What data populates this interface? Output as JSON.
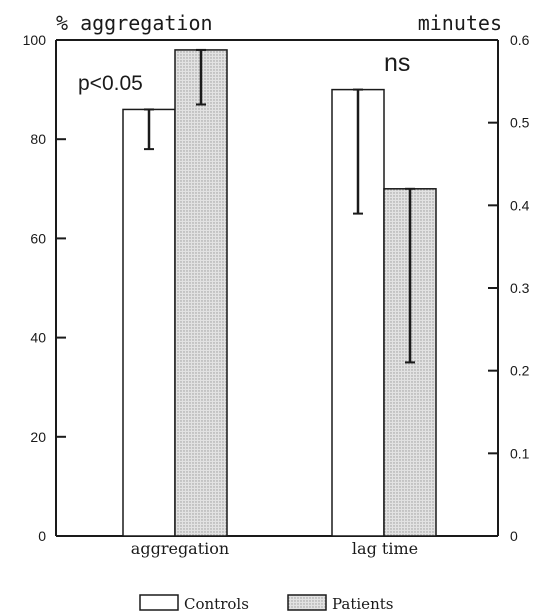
{
  "chart_data": {
    "type": "bar",
    "left_axis_label": "% aggregation",
    "right_axis_label": "minutes",
    "categories": [
      "aggregation",
      "lag time"
    ],
    "left_ylim": [
      0,
      100
    ],
    "right_ylim": [
      0,
      0.6
    ],
    "left_ticks": [
      "0",
      "20",
      "40",
      "60",
      "80",
      "100"
    ],
    "right_ticks": [
      "0",
      "0.1",
      "0.2",
      "0.3",
      "0.4",
      "0.5",
      "0.6"
    ],
    "series": [
      {
        "name": "Controls",
        "axis": [
          "left",
          "right"
        ],
        "values": [
          86,
          0.54
        ],
        "error_low": [
          78,
          0.39
        ],
        "error_high": [
          86,
          0.54
        ],
        "fill": "#ffffff"
      },
      {
        "name": "Patients",
        "axis": [
          "left",
          "right"
        ],
        "values": [
          98,
          0.42
        ],
        "error_low": [
          87,
          0.21
        ],
        "error_high": [
          98,
          0.42
        ],
        "fill": "#d8d8d8"
      }
    ],
    "annotations": [
      "p<0.05",
      "ns"
    ],
    "legend": {
      "position": "bottom-center",
      "items": [
        "Controls",
        "Patients"
      ]
    },
    "grid": false,
    "colors": {
      "axis": "#1a1a1a",
      "patients_fill": "#d8d8d8",
      "controls_fill": "#ffffff"
    }
  }
}
